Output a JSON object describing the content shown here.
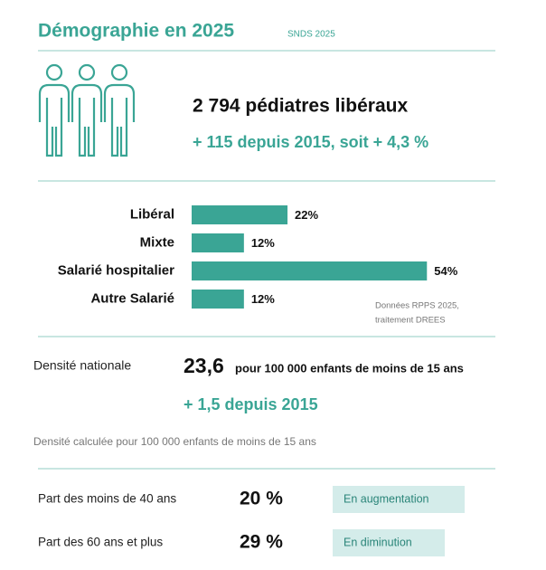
{
  "header": {
    "title": "Démographie en 2025",
    "source": "SNDS 2025"
  },
  "headline": {
    "count": "2 794 pédiatres libéraux",
    "change": "+ 115 depuis 2015, soit + 4,3 %"
  },
  "chart_data": {
    "type": "bar",
    "categories": [
      "Libéral",
      "Mixte",
      "Salarié hospitalier",
      "Autre Salarié"
    ],
    "values": [
      22,
      12,
      54,
      12
    ],
    "value_labels": [
      "22%",
      "12%",
      "54%",
      "12%"
    ],
    "color": "#3aa595",
    "note": [
      "Données RPPS 2025,",
      "traitement DREES"
    ]
  },
  "density": {
    "label": "Densité nationale",
    "value": "23,6",
    "unit": "pour 100 000 enfants de moins de 15 ans",
    "change": "+ 1,5 depuis 2015",
    "footnote": "Densité calculée pour 100 000 enfants de moins de 15 ans"
  },
  "shares": [
    {
      "label": "Part des moins de 40 ans",
      "value": "20 %",
      "trend": "En augmentation"
    },
    {
      "label": "Part des 60 ans et plus",
      "value": "29 %",
      "trend": "En diminution"
    }
  ]
}
